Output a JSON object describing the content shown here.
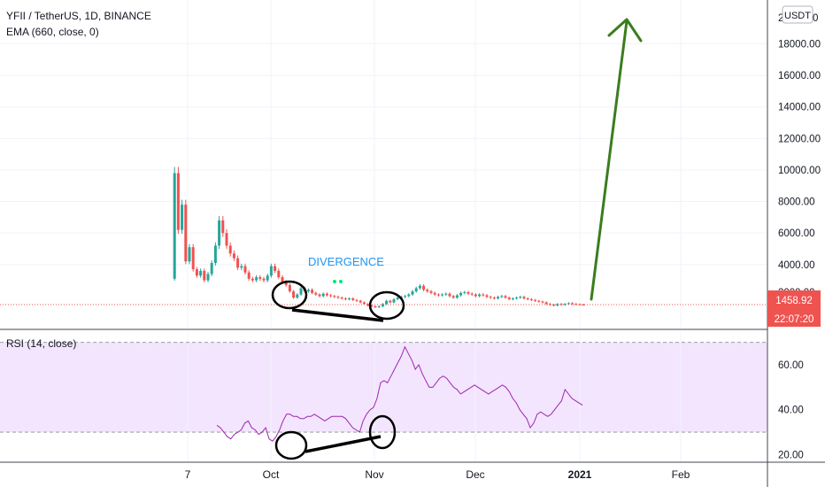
{
  "header": {
    "symbol_title": "YFII / TetherUS, 1D, BINANCE",
    "ema_label": "EMA (660, close, 0)",
    "currency_badge": "USDT"
  },
  "price_panel": {
    "current_price": "1458.92",
    "countdown": "22:07:20",
    "last_price": 1458.92,
    "top_tick_partial": "2",
    "top_tick_partial_suffix": "0",
    "bottom_tick_partial": "2000.00"
  },
  "rsi_panel": {
    "label": "RSI (14, close)",
    "upper_band": 70,
    "lower_band": 30
  },
  "annotations": {
    "divergence_text": "DIVERGENCE"
  },
  "x_axis": {
    "ticks": [
      {
        "label": "7",
        "bold": false
      },
      {
        "label": "Oct",
        "bold": false
      },
      {
        "label": "Nov",
        "bold": false
      },
      {
        "label": "Dec",
        "bold": false
      },
      {
        "label": "2021",
        "bold": true
      },
      {
        "label": "Feb",
        "bold": false
      }
    ]
  },
  "colors": {
    "up": "#26a69a",
    "down": "#ef5350",
    "rsi_line": "#9c27b0",
    "rsi_band_fill": "#f3e5fd",
    "arrow": "#3a7d1e",
    "price_line": "#ef5350",
    "divergence": "#2196f3"
  },
  "chart_data": [
    {
      "type": "candlestick",
      "title": "YFII / TetherUS, 1D, BINANCE",
      "ylabel": "USDT",
      "ylim": [
        0,
        20500
      ],
      "y_ticks": [
        4000,
        6000,
        8000,
        10000,
        12000,
        14000,
        16000,
        18000
      ],
      "start_date": "2020-09-01",
      "price_series": [
        3100,
        9800,
        6200,
        7800,
        4200,
        5100,
        3700,
        3300,
        3600,
        3000,
        3400,
        4100,
        5200,
        6800,
        6000,
        5200,
        4700,
        4400,
        3800,
        3900,
        3500,
        3100,
        3000,
        3200,
        3100,
        3000,
        3300,
        3900,
        3600,
        3200,
        2900,
        2700,
        2300,
        1900,
        2100,
        2500,
        2300,
        2400,
        2200,
        2100,
        2000,
        2150,
        2050,
        2000,
        1950,
        1900,
        1850,
        1800,
        1850,
        1750,
        1700,
        1600,
        1500,
        1400,
        1350,
        1300,
        1350,
        1500,
        1700,
        1600,
        1800,
        1900,
        1950,
        2000,
        2100,
        2300,
        2500,
        2650,
        2400,
        2300,
        2200,
        2100,
        2050,
        2100,
        2150,
        2000,
        1900,
        2050,
        2200,
        2250,
        2150,
        2100,
        2000,
        2100,
        2050,
        1950,
        1900,
        1850,
        1950,
        2000,
        1900,
        1800,
        1850,
        1900,
        1950,
        1850,
        1800,
        1750,
        1700,
        1650,
        1600,
        1500,
        1450,
        1400,
        1500,
        1450,
        1500,
        1550,
        1500,
        1480,
        1460,
        1459
      ],
      "annotation": {
        "text": "DIVERGENCE",
        "projection": "arrow up to above 20000"
      }
    },
    {
      "type": "line",
      "title": "RSI (14, close)",
      "ylim": [
        17,
        75
      ],
      "y_ticks": [
        20,
        40,
        60
      ],
      "bands": [
        30,
        70
      ],
      "series": [
        {
          "values": [
            33,
            32,
            30,
            28,
            27,
            29,
            30,
            31,
            34,
            35,
            32,
            31,
            29,
            30,
            32,
            27,
            26,
            28,
            31,
            35,
            38,
            38,
            37,
            37,
            36,
            36,
            37,
            37,
            38,
            37,
            36,
            35,
            36,
            37,
            37,
            37,
            37,
            36,
            34,
            32,
            31,
            30,
            35,
            38,
            40,
            41,
            45,
            52,
            53,
            52,
            55,
            58,
            61,
            64,
            68,
            65,
            62,
            58,
            60,
            56,
            53,
            50,
            50,
            52,
            54,
            55,
            54,
            52,
            50,
            49,
            47,
            48,
            49,
            50,
            51,
            50,
            49,
            48,
            47,
            48,
            49,
            50,
            51,
            50,
            48,
            45,
            43,
            40,
            38,
            36,
            32,
            34,
            38,
            39,
            38,
            37,
            38,
            40,
            42,
            44,
            49,
            47,
            45,
            44,
            43,
            42
          ]
        }
      ]
    }
  ]
}
